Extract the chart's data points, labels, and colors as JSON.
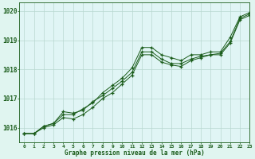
{
  "xlabel": "Graphe pression niveau de la mer (hPa)",
  "ylim": [
    1015.5,
    1020.3
  ],
  "xlim": [
    -0.5,
    23
  ],
  "yticks": [
    1016,
    1017,
    1018,
    1019,
    1020
  ],
  "xticks": [
    0,
    1,
    2,
    3,
    4,
    5,
    6,
    7,
    8,
    9,
    10,
    11,
    12,
    13,
    14,
    15,
    16,
    17,
    18,
    19,
    20,
    21,
    22,
    23
  ],
  "bg_color": "#e0f5f0",
  "plot_bg_color": "#e0f5f5",
  "grid_color": "#b8d8d0",
  "line_color": "#1a5c1a",
  "line1": [
    1015.8,
    1015.8,
    1016.05,
    1016.15,
    1016.45,
    1016.45,
    1016.65,
    1016.85,
    1017.2,
    1017.45,
    1017.7,
    1018.05,
    1018.75,
    1018.75,
    1018.5,
    1018.4,
    1018.3,
    1018.5,
    1018.5,
    1018.6,
    1018.6,
    1019.1,
    1019.8,
    1019.95
  ],
  "line2": [
    1015.8,
    1015.8,
    1016.05,
    1016.15,
    1016.55,
    1016.5,
    1016.6,
    1016.9,
    1017.1,
    1017.35,
    1017.6,
    1017.9,
    1018.6,
    1018.6,
    1018.35,
    1018.2,
    1018.2,
    1018.35,
    1018.45,
    1018.5,
    1018.55,
    1018.95,
    1019.75,
    1019.9
  ],
  "line3": [
    1015.8,
    1015.8,
    1016.0,
    1016.1,
    1016.35,
    1016.3,
    1016.45,
    1016.7,
    1017.0,
    1017.2,
    1017.5,
    1017.8,
    1018.5,
    1018.5,
    1018.25,
    1018.15,
    1018.1,
    1018.3,
    1018.4,
    1018.5,
    1018.5,
    1018.9,
    1019.7,
    1019.85
  ]
}
